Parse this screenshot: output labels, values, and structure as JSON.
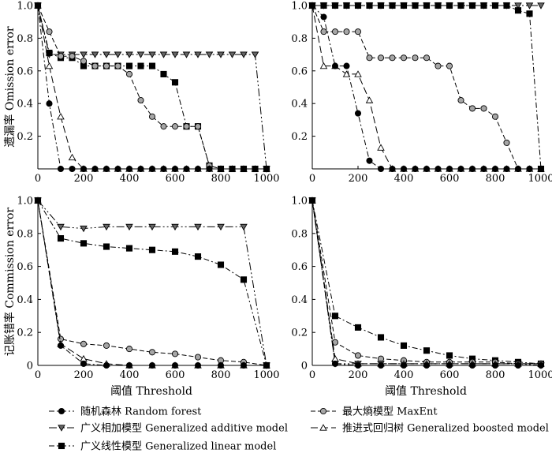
{
  "chart_data": [
    {
      "type": "line",
      "panel": "top-left",
      "xlim": [
        0,
        1000
      ],
      "ylim": [
        0,
        1
      ],
      "x_ticks": [
        "0",
        "200",
        "400",
        "600",
        "800",
        "1000"
      ],
      "y_ticks": [
        "0.2",
        "0.4",
        "0.6",
        "0.8",
        "1.0"
      ],
      "ylabel": "遗漏率 Omission error",
      "xlabel": "",
      "series": [
        {
          "model": "rf",
          "x": [
            0,
            50,
            100,
            150,
            200,
            250,
            300,
            350,
            400,
            450,
            500,
            550,
            600,
            650,
            700,
            750,
            800,
            850,
            900,
            950,
            1000
          ],
          "y": [
            1,
            0.4,
            0,
            0,
            0,
            0,
            0,
            0,
            0,
            0,
            0,
            0,
            0,
            0,
            0,
            0,
            0,
            0,
            0,
            0,
            0
          ]
        },
        {
          "model": "gam",
          "x": [
            0,
            50,
            100,
            150,
            200,
            250,
            300,
            350,
            400,
            450,
            500,
            550,
            600,
            650,
            700,
            750,
            800,
            850,
            900,
            950,
            1000
          ],
          "y": [
            1,
            0.7,
            0.7,
            0.7,
            0.7,
            0.7,
            0.7,
            0.7,
            0.7,
            0.7,
            0.7,
            0.7,
            0.7,
            0.7,
            0.7,
            0.7,
            0.7,
            0.7,
            0.7,
            0.7,
            0
          ]
        },
        {
          "model": "glm",
          "x": [
            0,
            50,
            100,
            150,
            200,
            250,
            300,
            350,
            400,
            450,
            500,
            550,
            600,
            650,
            700,
            750,
            800,
            850,
            900,
            950,
            1000
          ],
          "y": [
            1,
            0.71,
            0.68,
            0.68,
            0.63,
            0.63,
            0.63,
            0.63,
            0.63,
            0.63,
            0.63,
            0.58,
            0.53,
            0.26,
            0.26,
            0.02,
            0,
            0,
            0,
            0,
            0
          ]
        },
        {
          "model": "maxent",
          "x": [
            0,
            50,
            100,
            150,
            200,
            250,
            300,
            350,
            400,
            450,
            500,
            550,
            600,
            650,
            700,
            750,
            800,
            850,
            900,
            950,
            1000
          ],
          "y": [
            1,
            0.84,
            0.69,
            0.69,
            0.66,
            0.63,
            0.63,
            0.63,
            0.58,
            0.42,
            0.32,
            0.26,
            0.26,
            0.26,
            0.26,
            0.02,
            0,
            0,
            0,
            0,
            0
          ]
        },
        {
          "model": "brt",
          "x": [
            0,
            50,
            100,
            150,
            200,
            250,
            300,
            350,
            400,
            450,
            500,
            550,
            600,
            650,
            700,
            750,
            800,
            850,
            900,
            950,
            1000
          ],
          "y": [
            1,
            0.63,
            0.32,
            0.07,
            0,
            0,
            0,
            0,
            0,
            0,
            0,
            0,
            0,
            0,
            0,
            0,
            0,
            0,
            0,
            0,
            0
          ]
        }
      ]
    },
    {
      "type": "line",
      "panel": "top-right",
      "xlim": [
        0,
        1000
      ],
      "ylim": [
        0,
        1
      ],
      "x_ticks": [
        "0",
        "200",
        "400",
        "600",
        "800",
        "1000"
      ],
      "y_ticks": [
        "0.2",
        "0.4",
        "0.6",
        "0.8",
        "1.0"
      ],
      "ylabel": "",
      "xlabel": "",
      "series": [
        {
          "model": "rf",
          "x": [
            0,
            50,
            100,
            150,
            200,
            250,
            300,
            350,
            400,
            450,
            500,
            550,
            600,
            650,
            700,
            750,
            800,
            850,
            900,
            950,
            1000
          ],
          "y": [
            1,
            0.93,
            0.63,
            0.63,
            0.34,
            0.05,
            0,
            0,
            0,
            0,
            0,
            0,
            0,
            0,
            0,
            0,
            0,
            0,
            0,
            0,
            0
          ]
        },
        {
          "model": "gam",
          "x": [
            0,
            50,
            100,
            150,
            200,
            250,
            300,
            350,
            400,
            450,
            500,
            550,
            600,
            650,
            700,
            750,
            800,
            850,
            900,
            950,
            1000
          ],
          "y": [
            1,
            1,
            1,
            1,
            1,
            1,
            1,
            1,
            1,
            1,
            1,
            1,
            1,
            1,
            1,
            1,
            1,
            1,
            1,
            1,
            1
          ]
        },
        {
          "model": "glm",
          "x": [
            0,
            50,
            100,
            150,
            200,
            250,
            300,
            350,
            400,
            450,
            500,
            550,
            600,
            650,
            700,
            750,
            800,
            850,
            900,
            950,
            1000
          ],
          "y": [
            1,
            1,
            1,
            1,
            1,
            1,
            1,
            1,
            1,
            1,
            1,
            1,
            1,
            1,
            1,
            1,
            1,
            1,
            0.97,
            0.95,
            0
          ]
        },
        {
          "model": "maxent",
          "x": [
            0,
            50,
            100,
            150,
            200,
            250,
            300,
            350,
            400,
            450,
            500,
            550,
            600,
            650,
            700,
            750,
            800,
            850,
            900,
            950,
            1000
          ],
          "y": [
            1,
            0.84,
            0.84,
            0.84,
            0.84,
            0.68,
            0.68,
            0.68,
            0.68,
            0.68,
            0.68,
            0.63,
            0.63,
            0.42,
            0.37,
            0.37,
            0.32,
            0.16,
            0,
            0,
            0
          ]
        },
        {
          "model": "brt",
          "x": [
            0,
            50,
            100,
            150,
            200,
            250,
            300,
            350,
            400,
            450,
            500,
            550,
            600,
            650,
            700,
            750,
            800,
            850,
            900,
            950,
            1000
          ],
          "y": [
            1,
            0.63,
            0.63,
            0.58,
            0.58,
            0.42,
            0.13,
            0,
            0,
            0,
            0,
            0,
            0,
            0,
            0,
            0,
            0,
            0,
            0,
            0,
            0
          ]
        }
      ]
    },
    {
      "type": "line",
      "panel": "bottom-left",
      "xlim": [
        0,
        1000
      ],
      "ylim": [
        0,
        1
      ],
      "x_ticks": [
        "0",
        "200",
        "400",
        "600",
        "800",
        "1000"
      ],
      "y_ticks": [
        "0",
        "0.2",
        "0.4",
        "0.6",
        "0.8",
        "1.0"
      ],
      "ylabel": "记账错率 Commission error",
      "xlabel": "阈值 Threshold",
      "series": [
        {
          "model": "rf",
          "x": [
            0,
            100,
            200,
            300,
            400,
            500,
            600,
            700,
            800,
            900,
            1000
          ],
          "y": [
            1,
            0.12,
            0.01,
            0,
            0,
            0,
            0,
            0,
            0,
            0,
            0
          ]
        },
        {
          "model": "gam",
          "x": [
            0,
            100,
            200,
            300,
            400,
            500,
            600,
            700,
            800,
            900,
            1000
          ],
          "y": [
            1,
            0.84,
            0.83,
            0.84,
            0.84,
            0.84,
            0.84,
            0.84,
            0.84,
            0.84,
            0
          ]
        },
        {
          "model": "glm",
          "x": [
            0,
            100,
            200,
            300,
            400,
            500,
            600,
            700,
            800,
            900,
            1000
          ],
          "y": [
            1,
            0.77,
            0.74,
            0.72,
            0.71,
            0.7,
            0.69,
            0.66,
            0.61,
            0.52,
            0
          ]
        },
        {
          "model": "maxent",
          "x": [
            0,
            100,
            200,
            300,
            400,
            500,
            600,
            700,
            800,
            900,
            1000
          ],
          "y": [
            1,
            0.16,
            0.13,
            0.12,
            0.1,
            0.08,
            0.07,
            0.05,
            0.03,
            0.02,
            0
          ]
        },
        {
          "model": "brt",
          "x": [
            0,
            100,
            200,
            300,
            400,
            500,
            600,
            700,
            800,
            900,
            1000
          ],
          "y": [
            1,
            0.13,
            0.04,
            0.01,
            0,
            0,
            0,
            0,
            0,
            0,
            0
          ]
        }
      ]
    },
    {
      "type": "line",
      "panel": "bottom-right",
      "xlim": [
        0,
        1000
      ],
      "ylim": [
        0,
        1
      ],
      "x_ticks": [
        "0",
        "200",
        "400",
        "600",
        "800",
        "1000"
      ],
      "y_ticks": [
        "0",
        "0.2",
        "0.4",
        "0.6",
        "0.8",
        "1.0"
      ],
      "ylabel": "",
      "xlabel": "阈值 Threshold",
      "series": [
        {
          "model": "rf",
          "x": [
            0,
            100,
            200,
            300,
            400,
            500,
            600,
            700,
            800,
            900,
            1000
          ],
          "y": [
            1,
            0.01,
            0,
            0,
            0,
            0,
            0,
            0,
            0,
            0,
            0
          ]
        },
        {
          "model": "gam",
          "x": [
            0,
            100,
            200,
            300,
            400,
            500,
            600,
            700,
            800,
            900,
            1000
          ],
          "y": [
            1,
            0.01,
            0.01,
            0.01,
            0.01,
            0.01,
            0.01,
            0.01,
            0.01,
            0.01,
            0
          ]
        },
        {
          "model": "glm",
          "x": [
            0,
            100,
            200,
            300,
            400,
            500,
            600,
            700,
            800,
            900,
            1000
          ],
          "y": [
            1,
            0.3,
            0.23,
            0.17,
            0.12,
            0.09,
            0.06,
            0.04,
            0.03,
            0.02,
            0.01
          ]
        },
        {
          "model": "maxent",
          "x": [
            0,
            100,
            200,
            300,
            400,
            500,
            600,
            700,
            800,
            900,
            1000
          ],
          "y": [
            1,
            0.14,
            0.06,
            0.04,
            0.03,
            0.02,
            0.02,
            0.02,
            0.02,
            0.01,
            0.01
          ]
        },
        {
          "model": "brt",
          "x": [
            0,
            100,
            200,
            300,
            400,
            500,
            600,
            700,
            800,
            900,
            1000
          ],
          "y": [
            1,
            0.04,
            0.01,
            0.01,
            0.01,
            0.01,
            0.01,
            0.01,
            0.01,
            0.01,
            0.01
          ]
        }
      ]
    }
  ],
  "legend": {
    "placement": "bottom",
    "items": [
      {
        "model": "rf",
        "label": "随机森林 Random forest",
        "marker": "circle",
        "fill": "#000000",
        "dash": "7 3 2 3"
      },
      {
        "model": "maxent",
        "label": "最大熵模型 MaxEnt",
        "marker": "circle",
        "fill": "#a6a6a6",
        "dash": "6 3"
      },
      {
        "model": "gam",
        "label": "广义相加模型 Generalized additive model",
        "marker": "triangle-down",
        "fill": "#666666",
        "dash": "10 3 2 3 2 3"
      },
      {
        "model": "brt",
        "label": "推进式回归树 Generalized boosted model",
        "marker": "triangle-up",
        "fill": "#ffffff",
        "dash": "9 4"
      },
      {
        "model": "glm",
        "label": "广义线性模型 Generalized linear model",
        "marker": "square",
        "fill": "#000000",
        "dash": "7 3 2 3"
      }
    ]
  }
}
